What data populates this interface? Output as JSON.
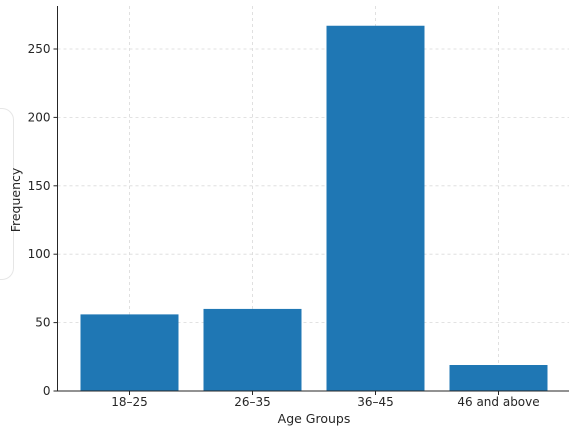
{
  "chart_data": {
    "type": "bar",
    "categories": [
      "18-25",
      "26-35",
      "36-45",
      "46 and above"
    ],
    "values": [
      56,
      60,
      267,
      19
    ],
    "title": "",
    "xlabel": "Age Groups",
    "ylabel": "Frequency",
    "ylim": [
      0,
      280
    ],
    "yticks": [
      0,
      50,
      100,
      150,
      200,
      250
    ],
    "grid": true,
    "bar_color": "#1f77b4"
  }
}
